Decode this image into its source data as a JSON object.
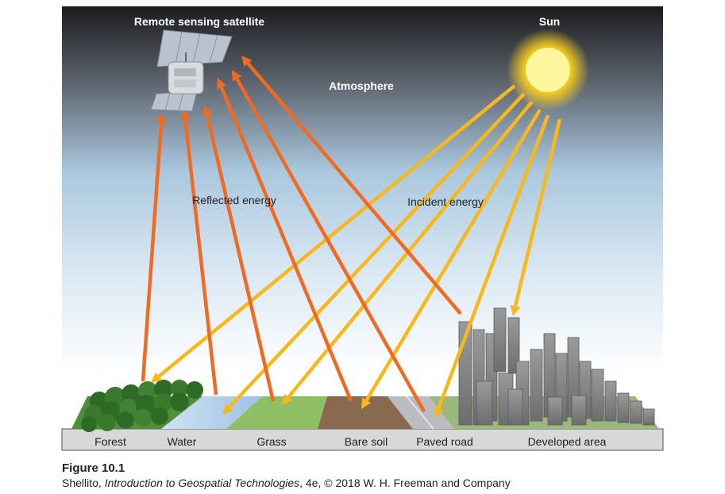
{
  "labels": {
    "satellite": "Remote sensing satellite",
    "sun": "Sun",
    "atmosphere": "Atmosphere",
    "reflected": "Reflected energy",
    "incident": "Incident energy"
  },
  "ground_labels": [
    "Forest",
    "Water",
    "Grass",
    "Bare soil",
    "Paved road",
    "Developed area"
  ],
  "caption": {
    "figure": "Figure 10.1",
    "author": "Shellito, ",
    "book": "Introduction to Geospatial Technologies",
    "rest": ", 4e, © 2018 W. H. Freeman and Company"
  },
  "colors": {
    "reflected": "#f06a23",
    "incident": "#f7b81c",
    "sky_top": "#1d1e20",
    "sky_bottom": "#ffffff",
    "sun": "#fff200"
  }
}
